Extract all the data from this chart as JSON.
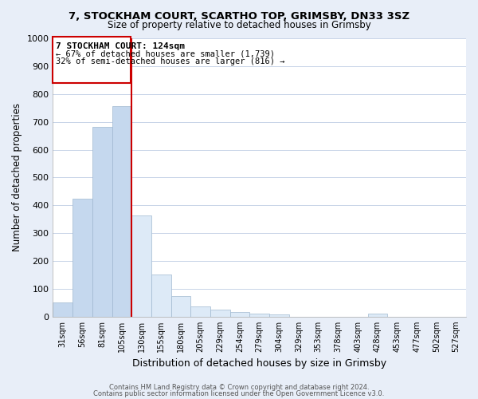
{
  "title": "7, STOCKHAM COURT, SCARTHO TOP, GRIMSBY, DN33 3SZ",
  "subtitle": "Size of property relative to detached houses in Grimsby",
  "xlabel": "Distribution of detached houses by size in Grimsby",
  "ylabel": "Number of detached properties",
  "bar_labels": [
    "31sqm",
    "56sqm",
    "81sqm",
    "105sqm",
    "130sqm",
    "155sqm",
    "180sqm",
    "205sqm",
    "229sqm",
    "254sqm",
    "279sqm",
    "304sqm",
    "329sqm",
    "353sqm",
    "378sqm",
    "403sqm",
    "428sqm",
    "453sqm",
    "477sqm",
    "502sqm",
    "527sqm"
  ],
  "bar_values": [
    52,
    425,
    683,
    757,
    363,
    152,
    75,
    38,
    25,
    18,
    12,
    8,
    0,
    0,
    0,
    0,
    10,
    0,
    0,
    0,
    0
  ],
  "bar_color_left": "#c5d8ee",
  "bar_color_right": "#ddeaf7",
  "bar_edge_color": "#a0b8d0",
  "marker_index": 4,
  "marker_label": "7 STOCKHAM COURT: 124sqm",
  "marker_line_color": "#cc0000",
  "annotation_line1": "← 67% of detached houses are smaller (1,739)",
  "annotation_line2": "32% of semi-detached houses are larger (816) →",
  "ylim": [
    0,
    1000
  ],
  "yticks": [
    0,
    100,
    200,
    300,
    400,
    500,
    600,
    700,
    800,
    900,
    1000
  ],
  "footer_line1": "Contains HM Land Registry data © Crown copyright and database right 2024.",
  "footer_line2": "Contains public sector information licensed under the Open Government Licence v3.0.",
  "bg_color": "#e8eef8",
  "plot_bg_color": "#ffffff",
  "grid_color": "#c8d4e8"
}
